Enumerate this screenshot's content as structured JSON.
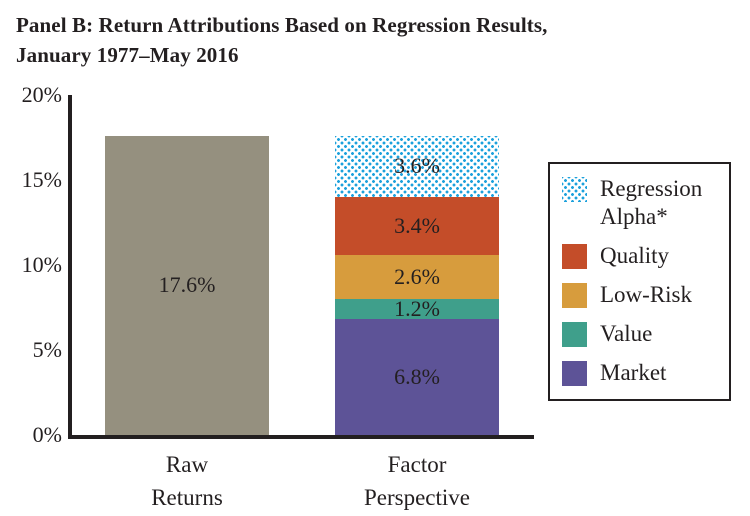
{
  "title": {
    "line1": "Panel B: Return Attributions Based on Regression Results,",
    "line2": "January 1977–May 2016"
  },
  "colors": {
    "axis_black": "#231f20",
    "raw_gray": "#95907f",
    "quality_red": "#c44d29",
    "low_risk_gold": "#d79c3d",
    "value_teal": "#3f9f8b",
    "market_purple": "#5d5397",
    "alpha_dot_blue": "#1da1dc"
  },
  "chart_data": {
    "type": "bar",
    "title": "Panel B: Return Attributions Based on Regression Results, January 1977–May 2016",
    "xlabel": "",
    "ylabel": "",
    "ylim": [
      0,
      20
    ],
    "grid": false,
    "legend_position": "right",
    "y_ticks": [
      {
        "value": 0,
        "label": "0%"
      },
      {
        "value": 5,
        "label": "5%"
      },
      {
        "value": 10,
        "label": "10%"
      },
      {
        "value": 15,
        "label": "15%"
      },
      {
        "value": 20,
        "label": "20%"
      }
    ],
    "categories": [
      "Raw Returns",
      "Factor Perspective"
    ],
    "bars": [
      {
        "category": "Raw Returns",
        "segments": [
          {
            "name": "Raw Returns",
            "value": 17.6,
            "display": "17.6%",
            "color": "#95907f",
            "pattern": "solid"
          }
        ]
      },
      {
        "category": "Factor Perspective",
        "segments": [
          {
            "name": "Market",
            "value": 6.8,
            "display": "6.8%",
            "color": "#5d5397",
            "pattern": "solid"
          },
          {
            "name": "Value",
            "value": 1.2,
            "display": "1.2%",
            "color": "#3f9f8b",
            "pattern": "solid"
          },
          {
            "name": "Low-Risk",
            "value": 2.6,
            "display": "2.6%",
            "color": "#d79c3d",
            "pattern": "solid"
          },
          {
            "name": "Quality",
            "value": 3.4,
            "display": "3.4%",
            "color": "#c44d29",
            "pattern": "solid"
          },
          {
            "name": "Regression Alpha*",
            "value": 3.6,
            "display": "3.6%",
            "color": "#1da1dc",
            "pattern": "dotted"
          }
        ]
      }
    ],
    "legend": [
      {
        "label": "Regression Alpha*",
        "color": "#1da1dc",
        "pattern": "dotted"
      },
      {
        "label": "Quality",
        "color": "#c44d29",
        "pattern": "solid"
      },
      {
        "label": "Low-Risk",
        "color": "#d79c3d",
        "pattern": "solid"
      },
      {
        "label": "Value",
        "color": "#3f9f8b",
        "pattern": "solid"
      },
      {
        "label": "Market",
        "color": "#5d5397",
        "pattern": "solid"
      }
    ]
  }
}
